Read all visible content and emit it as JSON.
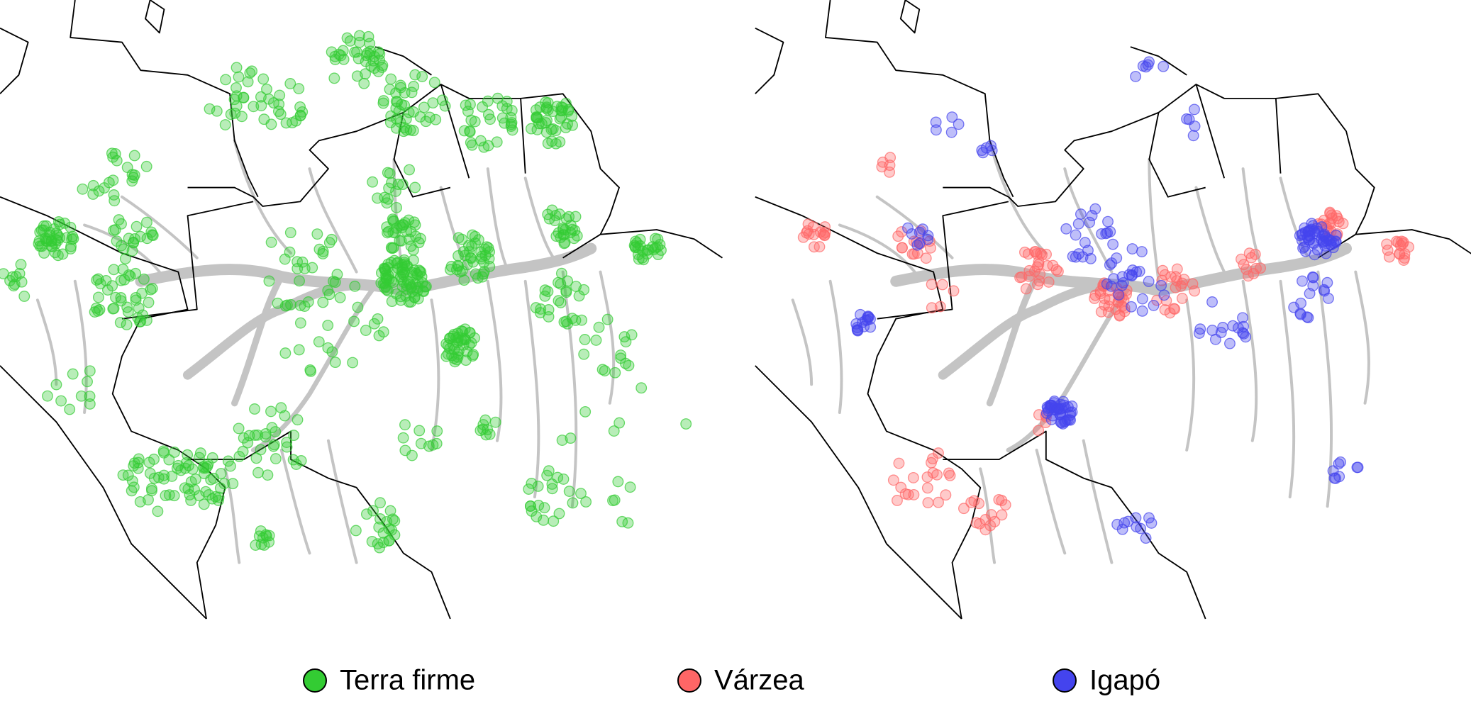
{
  "legend": {
    "items": [
      {
        "label": "Terra firme",
        "color": "#33cc33"
      },
      {
        "label": "Várzea",
        "color": "#ff6666"
      },
      {
        "label": "Igapó",
        "color": "#4444ee"
      }
    ]
  }
}
